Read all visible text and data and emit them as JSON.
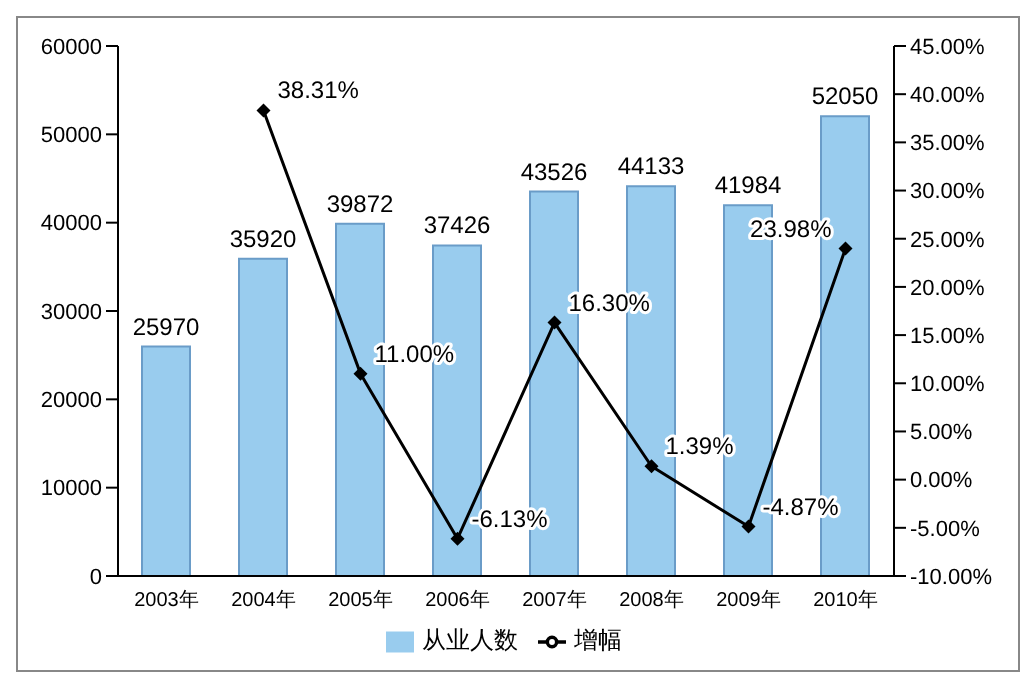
{
  "chart_data": {
    "type": "bar",
    "categories": [
      "2003年",
      "2004年",
      "2005年",
      "2006年",
      "2007年",
      "2008年",
      "2009年",
      "2010年"
    ],
    "series": [
      {
        "name": "从业人数",
        "color": "#99ccee",
        "values": [
          25970,
          35920,
          39872,
          37426,
          43526,
          44133,
          41984,
          52050
        ],
        "value_labels": [
          "25970",
          "35920",
          "39872",
          "37426",
          "43526",
          "44133",
          "41984",
          "52050"
        ]
      },
      {
        "name": "增幅",
        "type": "line",
        "axis": "y2",
        "color": "#000000",
        "values": [
          null,
          38.31,
          11.0,
          -6.13,
          16.3,
          1.39,
          -4.87,
          23.98
        ],
        "value_labels": [
          null,
          "38.31%",
          "11.00%",
          "-6.13%",
          "16.30%",
          "1.39%",
          "-4.87%",
          "23.98%"
        ]
      }
    ],
    "ylim": [
      0,
      60000
    ],
    "yticks": [
      0,
      10000,
      20000,
      30000,
      40000,
      50000,
      60000
    ],
    "y2lim": [
      -10,
      45
    ],
    "y2ticks": [
      {
        "value": 45,
        "label": "45.00%"
      },
      {
        "value": 40,
        "label": "40.00%"
      },
      {
        "value": 35,
        "label": "35.00%"
      },
      {
        "value": 30,
        "label": "30.00%"
      },
      {
        "value": 25,
        "label": "25.00%"
      },
      {
        "value": 20,
        "label": "20.00%"
      },
      {
        "value": 15,
        "label": "15.00%"
      },
      {
        "value": 10,
        "label": "10.00%"
      },
      {
        "value": 5,
        "label": "5.00%"
      },
      {
        "value": 0,
        "label": "0.00%"
      },
      {
        "value": -5,
        "label": "-5.00%"
      },
      {
        "value": -10,
        "label": "-10.00%"
      }
    ],
    "grid": false,
    "legend": "bottom",
    "marker": "diamond"
  }
}
